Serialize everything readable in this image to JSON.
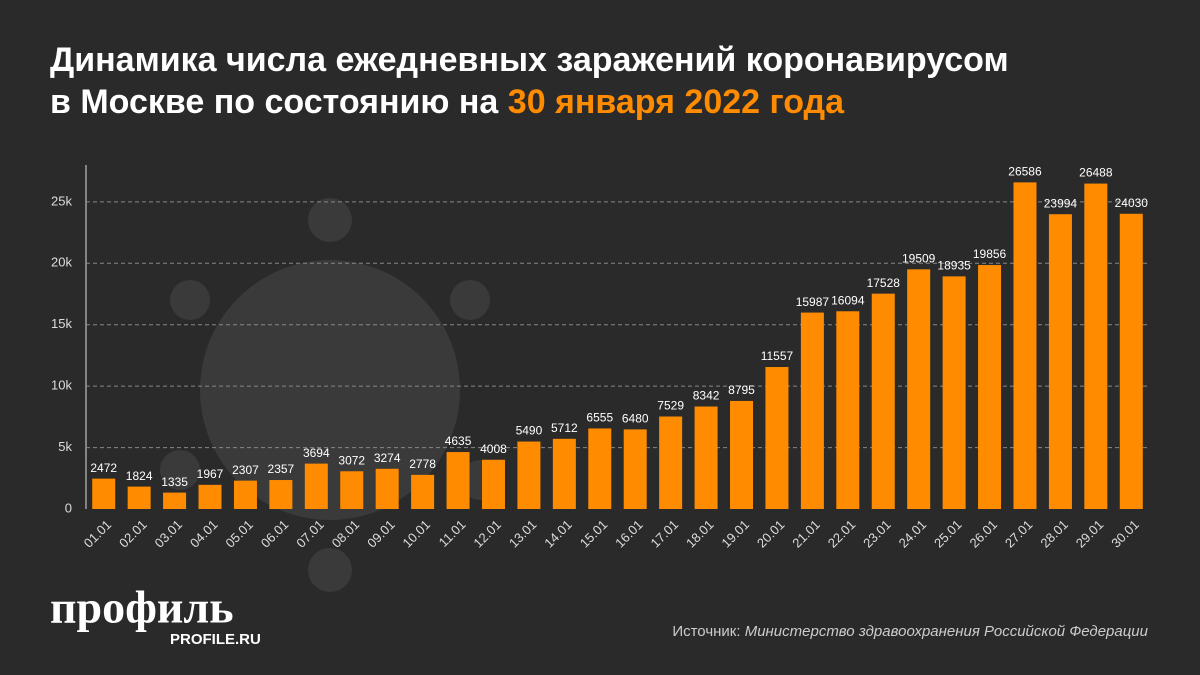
{
  "chart_data": {
    "type": "bar",
    "title": [
      "Динамика числа ежедневных заражений коронавирусом",
      "в Москве по состоянию на"
    ],
    "title_highlight": "30 января 2022 года",
    "categories": [
      "01.01",
      "02.01",
      "03.01",
      "04.01",
      "05.01",
      "06.01",
      "07.01",
      "08.01",
      "09.01",
      "10.01",
      "11.01",
      "12.01",
      "13.01",
      "14.01",
      "15.01",
      "16.01",
      "17.01",
      "18.01",
      "19.01",
      "20.01",
      "21.01",
      "22.01",
      "23.01",
      "24.01",
      "25.01",
      "26.01",
      "27.01",
      "28.01",
      "29.01",
      "30.01"
    ],
    "values": [
      2472,
      1824,
      1335,
      1967,
      2307,
      2357,
      3694,
      3072,
      3274,
      2778,
      4635,
      4008,
      5490,
      5712,
      6555,
      6480,
      7529,
      8342,
      8795,
      11557,
      15987,
      16094,
      17528,
      19509,
      18935,
      19856,
      26586,
      23994,
      26488,
      24030
    ],
    "color": "#ff8c00",
    "highlight_color": "#ff8c00",
    "ylim": [
      0,
      28000
    ],
    "yticks": [
      0,
      {
        "value": 5000,
        "label": "5k"
      },
      {
        "value": 10000,
        "label": "10k"
      },
      {
        "value": 15000,
        "label": "15k"
      },
      {
        "value": 20000,
        "label": "20k"
      },
      {
        "value": 25000,
        "label": "25k"
      }
    ],
    "grid": true,
    "source_label": "Источник:",
    "source": "Министерство здравоохранения Российской Федерации",
    "logo": "профиль",
    "logo_url": "PROFILE.RU"
  }
}
